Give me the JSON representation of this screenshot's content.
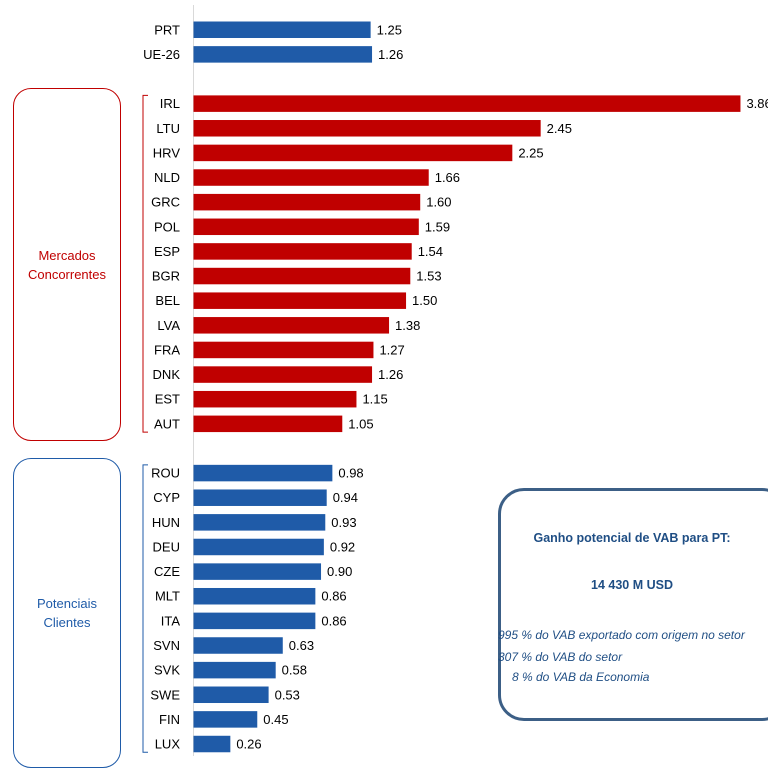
{
  "chart_data": {
    "type": "bar",
    "orientation": "horizontal",
    "categories": [
      "PRT",
      "UE-26",
      "IRL",
      "LTU",
      "HRV",
      "NLD",
      "GRC",
      "POL",
      "ESP",
      "BGR",
      "BEL",
      "LVA",
      "FRA",
      "DNK",
      "EST",
      "AUT",
      "ROU",
      "CYP",
      "HUN",
      "DEU",
      "CZE",
      "MLT",
      "ITA",
      "SVN",
      "SVK",
      "SWE",
      "FIN",
      "LUX"
    ],
    "values": [
      1.25,
      1.26,
      3.86,
      2.45,
      2.25,
      1.66,
      1.6,
      1.59,
      1.54,
      1.53,
      1.5,
      1.38,
      1.27,
      1.26,
      1.15,
      1.05,
      0.98,
      0.94,
      0.93,
      0.92,
      0.9,
      0.86,
      0.86,
      0.63,
      0.58,
      0.53,
      0.45,
      0.26
    ],
    "value_labels": [
      "1.25",
      "1.26",
      "3.86",
      "2.45",
      "2.25",
      "1.66",
      "1.60",
      "1.59",
      "1.54",
      "1.53",
      "1.50",
      "1.38",
      "1.27",
      "1.26",
      "1.15",
      "1.05",
      "0.98",
      "0.94",
      "0.93",
      "0.92",
      "0.90",
      "0.86",
      "0.86",
      "0.63",
      "0.58",
      "0.53",
      "0.45",
      "0.26"
    ],
    "bar_groups": [
      "reference",
      "reference",
      "mercados",
      "mercados",
      "mercados",
      "mercados",
      "mercados",
      "mercados",
      "mercados",
      "mercados",
      "mercados",
      "mercados",
      "mercados",
      "mercados",
      "mercados",
      "mercados",
      "potenciais",
      "potenciais",
      "potenciais",
      "potenciais",
      "potenciais",
      "potenciais",
      "potenciais",
      "potenciais",
      "potenciais",
      "potenciais",
      "potenciais",
      "potenciais"
    ],
    "colors": {
      "reference": "#1f5ba8",
      "mercados": "#c00000",
      "potenciais": "#1f5ba8"
    },
    "xlim": [
      0,
      3.86
    ],
    "grid": false,
    "legend": "none"
  },
  "groups": {
    "mercados": {
      "label": "Mercados\nConcorrentes",
      "color": "#c00000"
    },
    "potenciais": {
      "label": "Potenciais\nClientes",
      "color": "#1f5ba8"
    }
  },
  "info_box": {
    "title": "Ganho potencial de VAB para PT:",
    "total": "14 430 M USD",
    "lines": [
      "995 % do VAB exportado com origem no setor",
      "307 % do VAB do setor",
      "8 % do VAB da Economia"
    ]
  }
}
